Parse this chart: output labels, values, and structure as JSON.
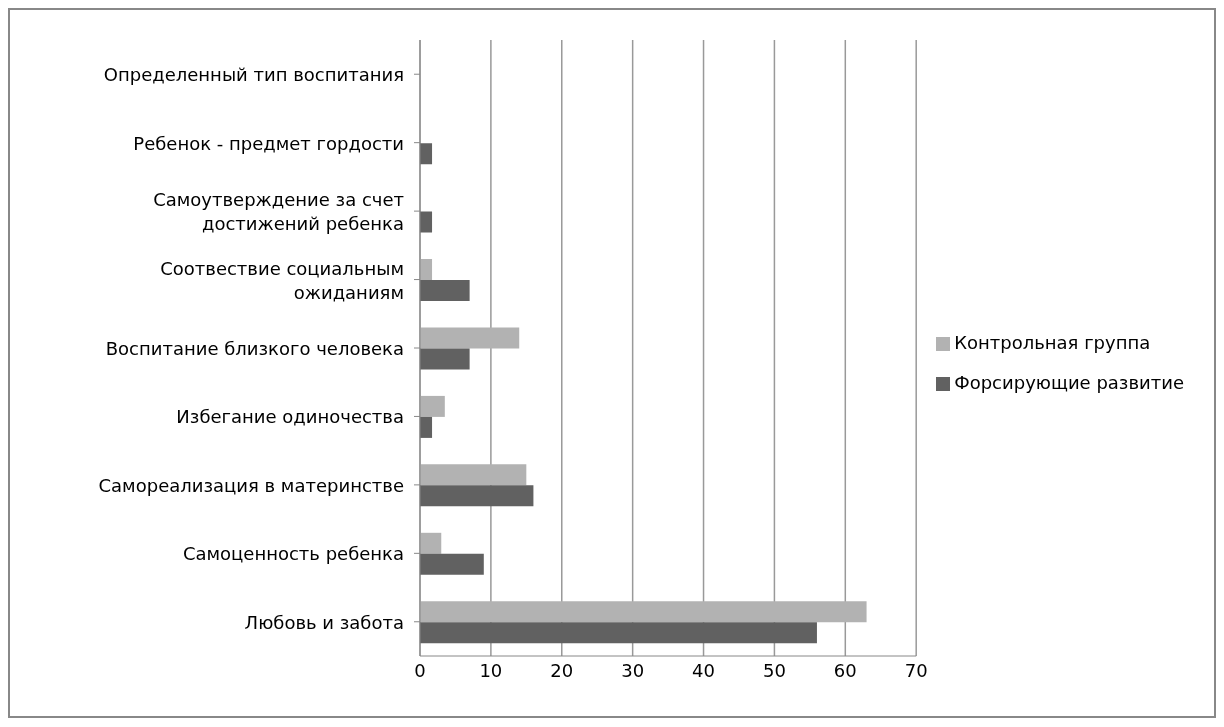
{
  "chart_data": {
    "type": "bar",
    "orientation": "horizontal",
    "categories": [
      "Определенный тип воспитания",
      "Ребенок - предмет гордости",
      "Самоутверждение за счет достижений ребенка",
      "Соотвествие социальным ожиданиям",
      "Воспитание близкого человека",
      "Избегание одиночества",
      "Самореализация в материнстве",
      "Самоценность ребенка",
      "Любовь и забота"
    ],
    "series": [
      {
        "name": "Контрольная группа",
        "color": "#b2b2b2",
        "values": [
          0,
          0,
          0,
          1.7,
          14,
          3.5,
          15,
          3,
          63
        ]
      },
      {
        "name": "Форсирующие развитие",
        "color": "#616161",
        "values": [
          0,
          1.7,
          1.7,
          7,
          7,
          1.7,
          16,
          9,
          56
        ]
      }
    ],
    "xlim": [
      0,
      70
    ],
    "xticks": [
      0,
      10,
      20,
      30,
      40,
      50,
      60,
      70
    ],
    "grid": "x",
    "legend": "right"
  }
}
